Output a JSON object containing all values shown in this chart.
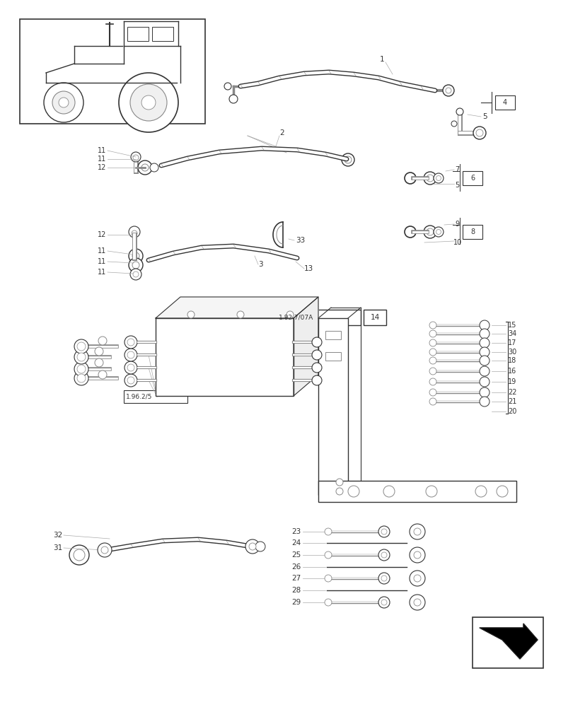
{
  "background_color": "#ffffff",
  "line_color": "#333333",
  "gray": "#888888",
  "lgray": "#aaaaaa",
  "fig_width": 8.28,
  "fig_height": 10.0,
  "dpi": 100
}
